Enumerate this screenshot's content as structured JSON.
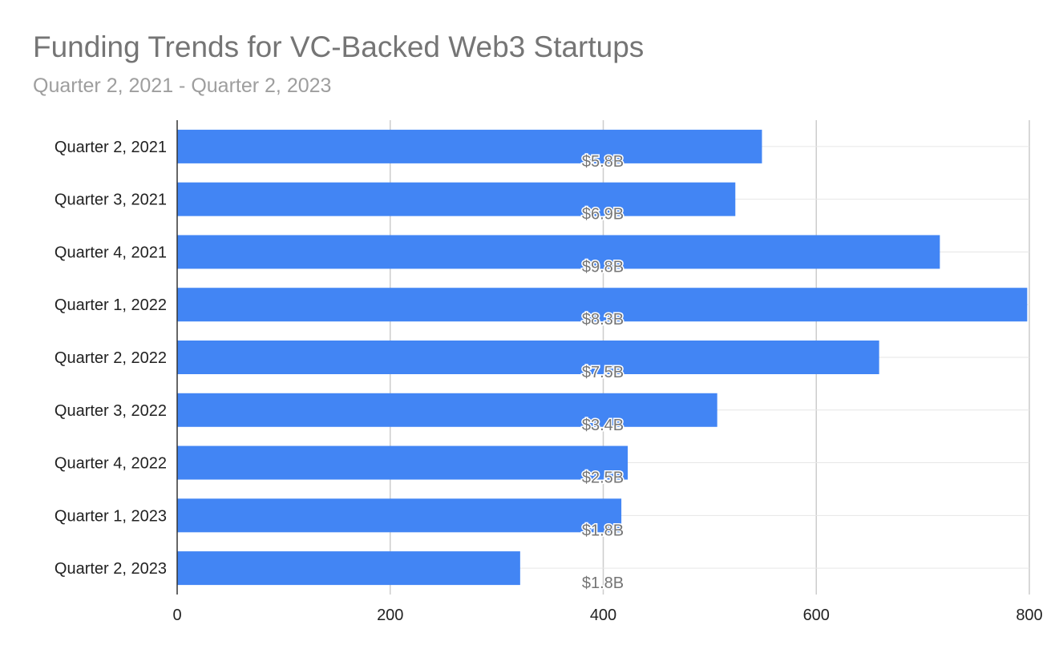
{
  "chart_data": {
    "type": "bar",
    "orientation": "horizontal",
    "title": "Funding Trends for VC-Backed Web3 Startups",
    "subtitle": "Quarter 2, 2021 - Quarter 2, 2023",
    "categories": [
      "Quarter 2, 2021",
      "Quarter 3, 2021",
      "Quarter 4, 2021",
      "Quarter 1, 2022",
      "Quarter 2, 2022",
      "Quarter 3, 2022",
      "Quarter 4, 2022",
      "Quarter 1, 2023",
      "Quarter 2, 2023"
    ],
    "values": [
      549,
      524,
      716,
      798,
      659,
      507,
      423,
      417,
      322
    ],
    "data_labels": [
      "$5.8B",
      "$6.9B",
      "$9.8B",
      "$8.3B",
      "$7.5B",
      "$3.4B",
      "$2.5B",
      "$1.8B",
      "$1.8B"
    ],
    "xlim": [
      0,
      800
    ],
    "xticks": [
      0,
      200,
      400,
      600,
      800
    ],
    "xlabel": "",
    "ylabel": "",
    "grid": true,
    "bar_color": "#4285f4"
  }
}
